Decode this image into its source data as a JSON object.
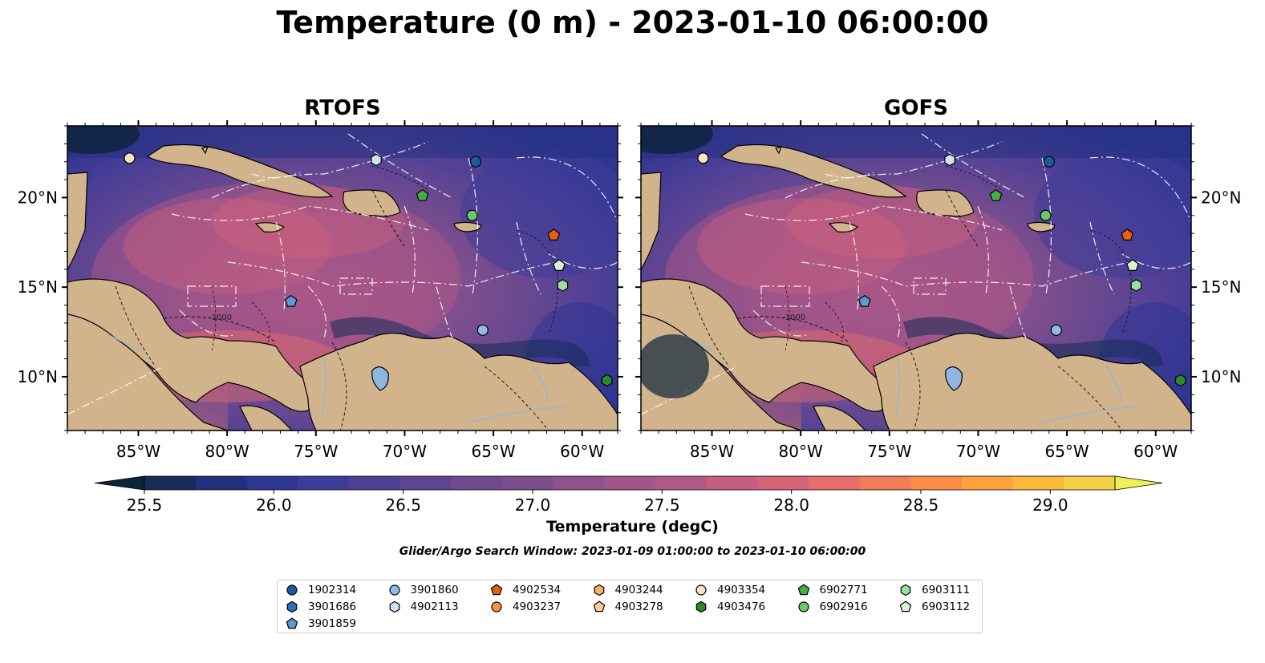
{
  "figure": {
    "title": "Temperature (0 m) - 2023-01-10 06:00:00",
    "search_window": "Glider/Argo Search Window: 2023-01-09 01:00:00 to 2023-01-10 06:00:00"
  },
  "panels": [
    {
      "title": "RTOFS",
      "model": "RTOFS"
    },
    {
      "title": "GOFS",
      "model": "GOFS"
    }
  ],
  "map": {
    "extent": {
      "lon": [
        -89,
        -58
      ],
      "lat": [
        7,
        24
      ]
    },
    "lon_ticks": [
      -85,
      -80,
      -75,
      -70,
      -65,
      -60
    ],
    "lon_tick_labels": [
      "85°W",
      "80°W",
      "75°W",
      "70°W",
      "65°W",
      "60°W"
    ],
    "lat_ticks": [
      10,
      15,
      20
    ],
    "lat_tick_labels": [
      "10°N",
      "15°N",
      "20°N"
    ],
    "land_color": "#d2b48c",
    "contour_label": "-1000"
  },
  "colorbar": {
    "label": "Temperature (degC)",
    "min": 25.5,
    "max": 29.25,
    "tick_values": [
      25.5,
      26.0,
      26.5,
      27.0,
      27.5,
      28.0,
      28.5,
      29.0
    ],
    "tick_labels": [
      "25.5",
      "26.0",
      "26.5",
      "27.0",
      "27.5",
      "28.0",
      "28.5",
      "29.0"
    ],
    "extend": "both",
    "colors": [
      "#0c2339",
      "#162b55",
      "#222f7e",
      "#2f3593",
      "#3e3c99",
      "#4f4096",
      "#5e4592",
      "#6e4a8f",
      "#7d4e8e",
      "#8f528c",
      "#a1558a",
      "#b35986",
      "#c55e80",
      "#d66477",
      "#e76e6a",
      "#f27b58",
      "#f98c46",
      "#fca13b",
      "#fbb83b",
      "#f6d045",
      "#eef055"
    ]
  },
  "legend": {
    "columns": [
      [
        {
          "id": "1902314",
          "marker": "circle",
          "color": "#1f5a9e"
        },
        {
          "id": "3901686",
          "marker": "hexagon",
          "color": "#2c72b5"
        },
        {
          "id": "3901859",
          "marker": "pentagon",
          "color": "#5b9bd5"
        }
      ],
      [
        {
          "id": "3901860",
          "marker": "circle",
          "color": "#8fbde8"
        },
        {
          "id": "4902113",
          "marker": "hexagon",
          "color": "#cfe3f7"
        }
      ],
      [
        {
          "id": "4902534",
          "marker": "pentagon",
          "color": "#e6600f"
        },
        {
          "id": "4903237",
          "marker": "circle",
          "color": "#f8913a"
        }
      ],
      [
        {
          "id": "4903244",
          "marker": "hexagon",
          "color": "#f7ad6c"
        },
        {
          "id": "4903278",
          "marker": "pentagon",
          "color": "#fbc99c"
        }
      ],
      [
        {
          "id": "4903354",
          "marker": "circle",
          "color": "#fde1c6"
        },
        {
          "id": "4903476",
          "marker": "hexagon",
          "color": "#2a8a2e"
        }
      ],
      [
        {
          "id": "6902771",
          "marker": "pentagon",
          "color": "#45ad45"
        },
        {
          "id": "6902916",
          "marker": "circle",
          "color": "#6cc76c"
        }
      ],
      [
        {
          "id": "6903111",
          "marker": "hexagon",
          "color": "#9de09d"
        },
        {
          "id": "6903112",
          "marker": "pentagon",
          "color": "#d5f5d0"
        }
      ]
    ]
  },
  "floats": [
    {
      "id": "4903354",
      "lon": -85.5,
      "lat": 22.2,
      "marker": "circle",
      "color": "#fde1c6"
    },
    {
      "id": "4902113",
      "lon": -71.6,
      "lat": 22.1,
      "marker": "hexagon",
      "color": "#cfe3f7"
    },
    {
      "id": "1902314",
      "lon": -66.0,
      "lat": 22.0,
      "marker": "circle",
      "color": "#1f5a9e"
    },
    {
      "id": "6902771",
      "lon": -69.0,
      "lat": 20.1,
      "marker": "pentagon",
      "color": "#45ad45"
    },
    {
      "id": "6902916",
      "lon": -66.2,
      "lat": 19.0,
      "marker": "circle",
      "color": "#6cc76c"
    },
    {
      "id": "4902534",
      "lon": -61.6,
      "lat": 17.9,
      "marker": "pentagon",
      "color": "#e6600f"
    },
    {
      "id": "6903112",
      "lon": -61.3,
      "lat": 16.2,
      "marker": "pentagon",
      "color": "#d5f5d0"
    },
    {
      "id": "6903111",
      "lon": -61.1,
      "lat": 15.1,
      "marker": "hexagon",
      "color": "#9de09d"
    },
    {
      "id": "3901859",
      "lon": -76.4,
      "lat": 14.2,
      "marker": "pentagon",
      "color": "#5b9bd5"
    },
    {
      "id": "3901860",
      "lon": -65.6,
      "lat": 12.6,
      "marker": "circle",
      "color": "#8fbde8"
    },
    {
      "id": "4903476",
      "lon": -58.6,
      "lat": 9.8,
      "marker": "hexagon",
      "color": "#2a8a2e"
    }
  ]
}
